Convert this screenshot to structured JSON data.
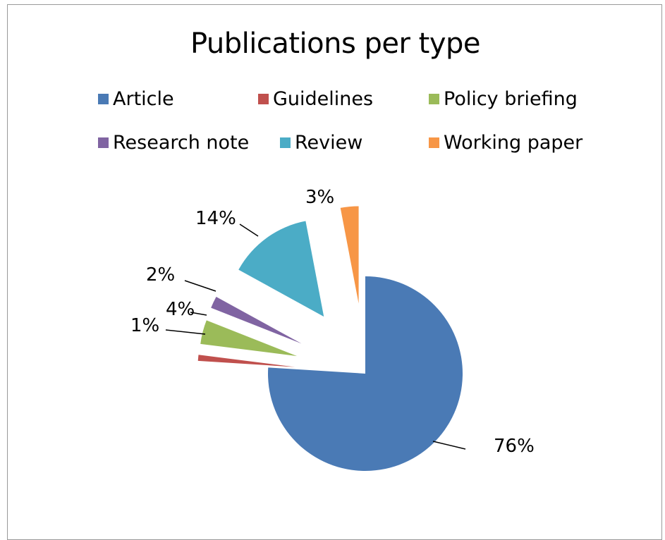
{
  "chart_data": {
    "type": "pie",
    "title": "Publications per type",
    "legend_position": "top",
    "categories": [
      "Article",
      "Guidelines",
      "Policy briefing",
      "Research note",
      "Review",
      "Working paper"
    ],
    "values": [
      76,
      1,
      4,
      2,
      14,
      3
    ],
    "value_labels": [
      "76%",
      "1%",
      "4%",
      "2%",
      "14%",
      "3%"
    ],
    "colors": [
      "#4a7ab5",
      "#c0504d",
      "#9bbb59",
      "#8064a2",
      "#4bacc6",
      "#f79646"
    ],
    "exploded": true
  }
}
